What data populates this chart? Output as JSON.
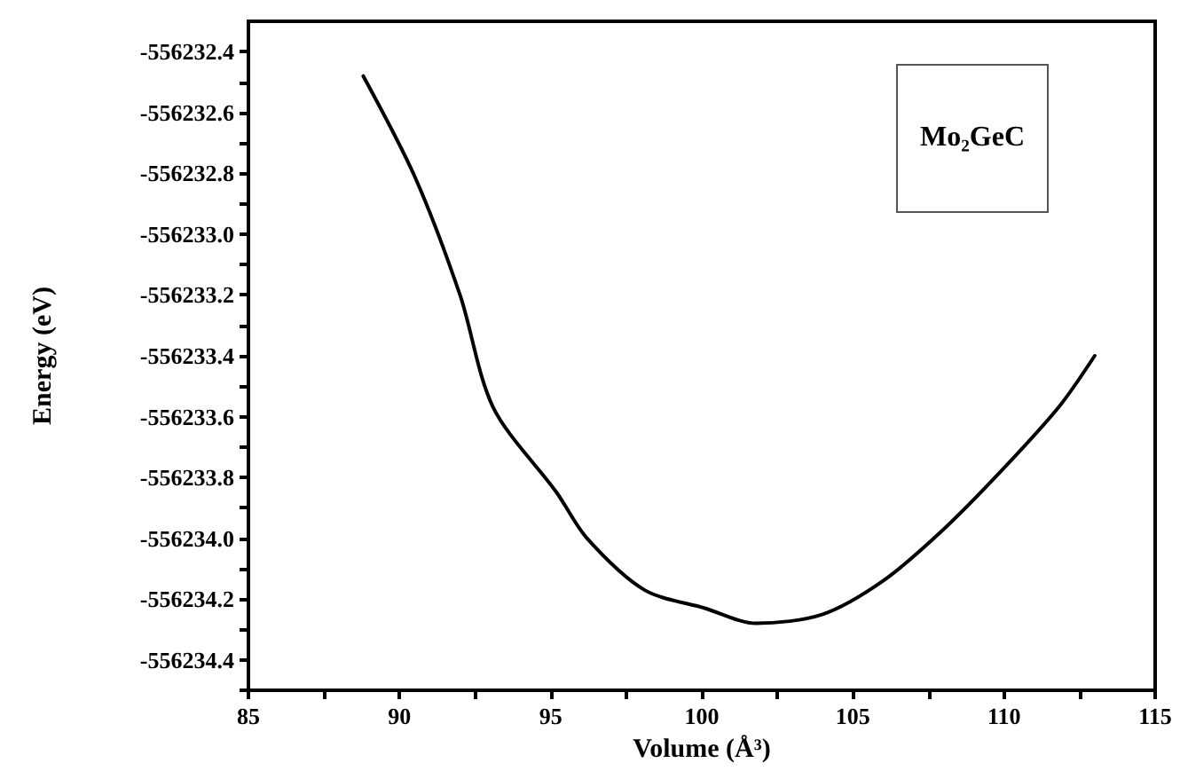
{
  "chart_data": {
    "type": "line",
    "xlabel": "Volume (Å³)",
    "ylabel": "Energy (eV)",
    "annotations": [
      "Mo₂GeC"
    ],
    "x": [
      88.8,
      90.5,
      92.0,
      93.1,
      95.2,
      96.2,
      98.1,
      100.1,
      101.8,
      104.0,
      106.0,
      107.9,
      109.8,
      111.8,
      113.0
    ],
    "series": [
      {
        "color": "#000000",
        "values": [
          -556232.48,
          -556232.81,
          -556233.2,
          -556233.57,
          -556233.85,
          -556234.0,
          -556234.17,
          -556234.23,
          -556234.28,
          -556234.25,
          -556234.14,
          -556233.98,
          -556233.79,
          -556233.57,
          -556233.4
        ]
      }
    ],
    "xlim": [
      85,
      115
    ],
    "xticks": [
      85,
      {
        "value": 87.5,
        "label": null
      },
      90,
      {
        "value": 92.5,
        "label": null
      },
      95,
      {
        "value": 97.5,
        "label": null
      },
      100,
      {
        "value": 102.5,
        "label": null
      },
      105,
      {
        "value": 107.5,
        "label": null
      },
      110,
      {
        "value": 112.5,
        "label": null
      },
      115
    ],
    "ylim": [
      -556234.5,
      -556232.3
    ],
    "yticks": [
      -556232.4,
      {
        "value": -556232.5,
        "label": null
      },
      -556232.6,
      {
        "value": -556232.7,
        "label": null
      },
      -556232.8,
      {
        "value": -556232.9,
        "label": null
      },
      {
        "value": -556233,
        "label": "-556233.0"
      },
      {
        "value": -556233.1,
        "label": null
      },
      -556233.2,
      {
        "value": -556233.3,
        "label": null
      },
      -556233.4,
      {
        "value": -556233.5,
        "label": null
      },
      -556233.6,
      {
        "value": -556233.7,
        "label": null
      },
      -556233.8,
      {
        "value": -556233.9,
        "label": null
      },
      {
        "value": -556234,
        "label": "-556234.0"
      },
      {
        "value": -556234.1,
        "label": null
      },
      -556234.2,
      {
        "value": -556234.3,
        "label": null
      },
      -556234.4,
      {
        "value": -556234.5,
        "label": null
      }
    ],
    "grid": false,
    "marker": "none",
    "line_style": "solid"
  }
}
